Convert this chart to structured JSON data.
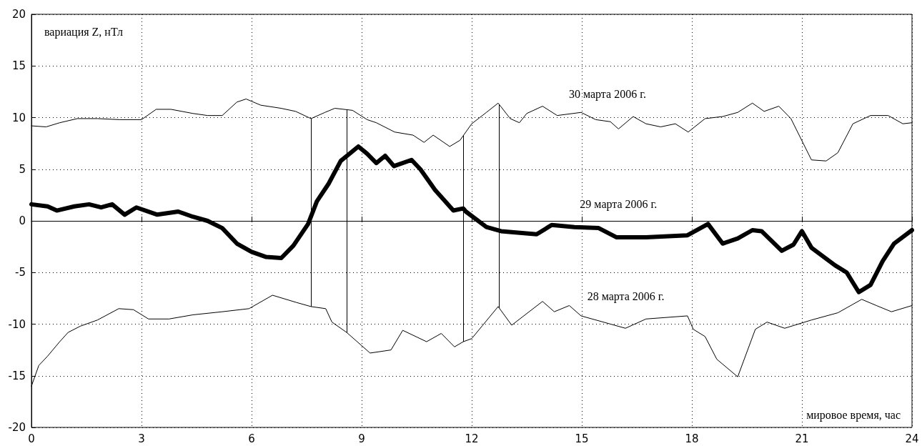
{
  "chart_data": {
    "type": "line",
    "xlabel": "мировое время, час",
    "ylabel": "вариация Z, нТл",
    "xlim": [
      0,
      24
    ],
    "xticks": [
      0,
      3,
      6,
      9,
      12,
      15,
      18,
      21,
      24
    ],
    "ylim": [
      -20,
      20
    ],
    "yticks": [
      -20,
      -15,
      -10,
      -5,
      0,
      5,
      10,
      15,
      20
    ],
    "grid": true,
    "legend": false,
    "marker": "none",
    "line_style": "solid",
    "series": [
      {
        "name": "30 марта 2006 г.",
        "color": "#000000",
        "x": [
          0,
          0.4,
          0.77,
          1.25,
          1.8,
          2.4,
          3.0,
          3.4,
          3.8,
          4.4,
          4.8,
          5.2,
          5.6,
          5.85,
          6.25,
          6.8,
          7.2,
          7.62,
          8.0,
          8.27,
          8.75,
          9.15,
          9.4,
          9.9,
          10.4,
          10.7,
          10.95,
          11.4,
          11.68,
          12.0,
          12.4,
          12.72,
          13.05,
          13.3,
          13.5,
          13.93,
          14.33,
          14.98,
          15.38,
          15.78,
          16.0,
          16.4,
          16.75,
          17.15,
          17.55,
          17.9,
          18.36,
          18.84,
          19.25,
          19.65,
          19.97,
          20.37,
          20.7,
          21.26,
          21.66,
          21.98,
          22.39,
          22.87,
          23.35,
          23.75,
          24.0
        ],
        "values": [
          9.2,
          9.1,
          9.5,
          9.9,
          9.9,
          9.8,
          9.8,
          10.8,
          10.8,
          10.4,
          10.2,
          10.2,
          11.5,
          11.8,
          11.2,
          10.9,
          10.6,
          9.9,
          10.5,
          10.9,
          10.7,
          9.8,
          9.5,
          8.6,
          8.3,
          7.6,
          8.3,
          7.2,
          7.8,
          9.4,
          10.5,
          11.4,
          9.9,
          9.5,
          10.4,
          11.1,
          10.2,
          10.5,
          9.8,
          9.6,
          8.9,
          10.1,
          9.4,
          9.1,
          9.4,
          8.6,
          9.9,
          10.1,
          10.5,
          11.4,
          10.6,
          11.1,
          9.9,
          5.9,
          5.8,
          6.6,
          9.4,
          10.2,
          10.2,
          9.4,
          9.5
        ]
      },
      {
        "name": "29 марта 2006 г.",
        "color": "#000000",
        "x": [
          0,
          0.44,
          0.69,
          1.17,
          1.57,
          1.9,
          2.2,
          2.54,
          2.86,
          3.43,
          4.0,
          4.4,
          4.8,
          5.2,
          5.6,
          6.0,
          6.4,
          6.81,
          7.14,
          7.54,
          7.78,
          8.1,
          8.43,
          8.91,
          9.15,
          9.4,
          9.64,
          9.88,
          10.36,
          10.6,
          11.0,
          11.5,
          11.77,
          11.84,
          12.4,
          12.8,
          13.77,
          14.18,
          14.8,
          15.46,
          15.95,
          16.75,
          17.88,
          18.44,
          18.84,
          19.25,
          19.65,
          19.9,
          20.45,
          20.77,
          21.0,
          21.26,
          21.9,
          22.22,
          22.55,
          22.87,
          23.2,
          23.51,
          24.0
        ],
        "values": [
          1.6,
          1.4,
          1.0,
          1.4,
          1.6,
          1.3,
          1.6,
          0.6,
          1.3,
          0.6,
          0.9,
          0.4,
          0.0,
          -0.7,
          -2.2,
          -3.0,
          -3.5,
          -3.6,
          -2.4,
          -0.3,
          1.9,
          3.6,
          5.8,
          7.2,
          6.5,
          5.6,
          6.3,
          5.3,
          5.9,
          5.0,
          3.0,
          1.0,
          1.2,
          0.9,
          -0.6,
          -1.0,
          -1.3,
          -0.4,
          -0.6,
          -0.7,
          -1.6,
          -1.6,
          -1.4,
          -0.3,
          -2.2,
          -1.7,
          -0.9,
          -1.0,
          -2.9,
          -2.3,
          -1.0,
          -2.6,
          -4.3,
          -5.0,
          -6.9,
          -6.2,
          -3.9,
          -2.2,
          -0.9
        ]
      },
      {
        "name": "28 марта 2006 г.",
        "color": "#000000",
        "x": [
          0,
          0.2,
          0.44,
          0.77,
          1.0,
          1.33,
          1.8,
          2.38,
          2.78,
          3.19,
          3.75,
          4.4,
          5.2,
          5.93,
          6.57,
          7.22,
          7.62,
          8.02,
          8.19,
          8.59,
          9.23,
          9.8,
          10.12,
          10.77,
          11.17,
          11.53,
          11.77,
          12.0,
          12.72,
          13.09,
          13.93,
          14.25,
          14.66,
          14.98,
          16.19,
          16.75,
          17.88,
          18.04,
          18.36,
          18.68,
          19.25,
          19.73,
          20.05,
          20.53,
          21.26,
          21.98,
          22.63,
          23.03,
          23.44,
          24.0
        ],
        "values": [
          -16.0,
          -14.0,
          -13.1,
          -11.7,
          -10.8,
          -10.2,
          -9.6,
          -8.5,
          -8.6,
          -9.5,
          -9.5,
          -9.1,
          -8.8,
          -8.5,
          -7.2,
          -7.9,
          -8.3,
          -8.5,
          -9.8,
          -10.8,
          -12.8,
          -12.5,
          -10.6,
          -11.7,
          -10.9,
          -12.2,
          -11.7,
          -11.4,
          -8.3,
          -10.1,
          -7.8,
          -8.8,
          -8.2,
          -9.2,
          -10.4,
          -9.5,
          -9.2,
          -10.5,
          -11.2,
          -13.4,
          -15.1,
          -10.5,
          -9.8,
          -10.4,
          -9.6,
          -8.9,
          -7.6,
          -8.2,
          -8.8,
          -8.2
        ]
      }
    ],
    "ref_lines": [
      {
        "axis": "x",
        "value": 7.62
      },
      {
        "axis": "x",
        "value": 8.6
      },
      {
        "axis": "x",
        "value": 11.77
      },
      {
        "axis": "x",
        "value": 12.75
      }
    ]
  }
}
